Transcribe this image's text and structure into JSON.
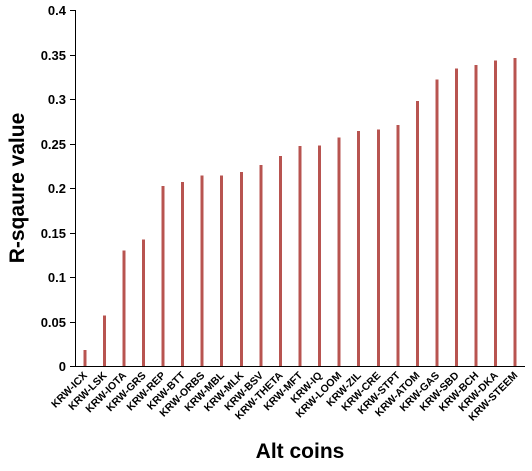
{
  "chart_data": {
    "type": "bar",
    "title": "",
    "xlabel": "Alt coins",
    "ylabel": "R-sqaure value",
    "ylim": [
      0,
      0.4
    ],
    "yticks": [
      "0",
      "0.05",
      "0.1",
      "0.15",
      "0.2",
      "0.25",
      "0.3",
      "0.35",
      "0.4"
    ],
    "grid": false,
    "legend": "none",
    "bar_color": "#b85450",
    "categories": [
      "KRW-ICX",
      "KRW-LSK",
      "KRW-IOTA",
      "KRW-GRS",
      "KRW-REP",
      "KRW-BTT",
      "KRW-ORBS",
      "KRW-MBL",
      "KRW-MLK",
      "KRW-BSV",
      "KRW-THETA",
      "KRW-MFT",
      "KRW-IQ",
      "KRW-LOOM",
      "KRW-ZIL",
      "KRW-CRE",
      "KRW-STPT",
      "KRW-ATOM",
      "KRW-GAS",
      "KRW-SBD",
      "KRW-BCH",
      "KRW-DKA",
      "KRW-STEEM"
    ],
    "values": [
      0.018,
      0.057,
      0.13,
      0.142,
      0.202,
      0.207,
      0.214,
      0.214,
      0.218,
      0.226,
      0.236,
      0.247,
      0.248,
      0.257,
      0.264,
      0.266,
      0.271,
      0.298,
      0.322,
      0.334,
      0.338,
      0.343,
      0.346
    ]
  }
}
